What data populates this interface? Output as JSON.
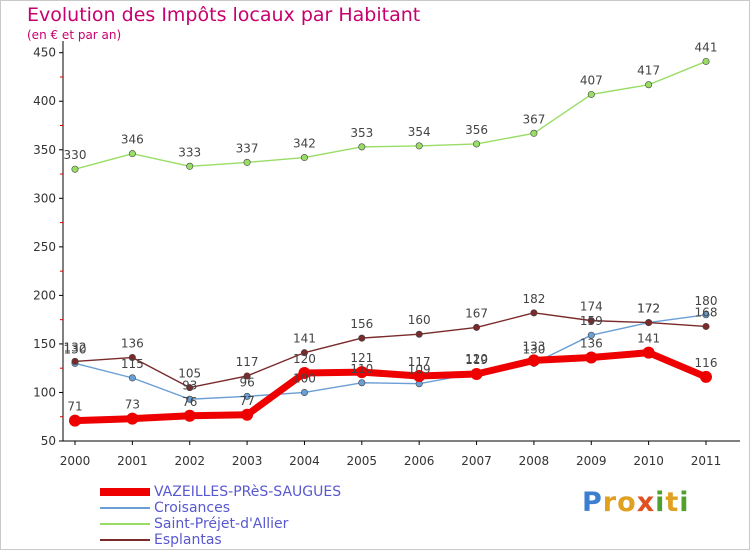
{
  "title": "Evolution des Impôts locaux par Habitant",
  "subtitle": "(en € et par an)",
  "brand": {
    "letters": [
      {
        "ch": "P",
        "color": "#3a7fd0"
      },
      {
        "ch": "r",
        "color": "#e0a020"
      },
      {
        "ch": "o",
        "color": "#e0a020"
      },
      {
        "ch": "x",
        "color": "#e05020"
      },
      {
        "ch": "i",
        "color": "#50a030"
      },
      {
        "ch": "t",
        "color": "#e0a020"
      },
      {
        "ch": "i",
        "color": "#50a030"
      }
    ]
  },
  "chart_data": {
    "type": "line",
    "x": [
      "2000",
      "2001",
      "2002",
      "2003",
      "2004",
      "2005",
      "2006",
      "2007",
      "2008",
      "2009",
      "2010",
      "2011"
    ],
    "ylim": [
      50,
      460
    ],
    "yticks": [
      50,
      100,
      150,
      200,
      250,
      300,
      350,
      400,
      450
    ],
    "grid": false,
    "legend_position": "bottom-left",
    "series": [
      {
        "name": "VAZEILLES-PRèS-SAUGUES",
        "color": "#ee0000",
        "values": [
          71,
          73,
          76,
          77,
          120,
          121,
          117,
          119,
          133,
          136,
          141,
          116
        ]
      },
      {
        "name": "Croisances",
        "color": "#6a9fd6",
        "values": [
          130,
          115,
          93,
          96,
          100,
          110,
          109,
          120,
          130,
          159,
          172,
          180
        ]
      },
      {
        "name": "Saint-Préjet-d'Allier",
        "color": "#99dd66",
        "values": [
          330,
          346,
          333,
          337,
          342,
          353,
          354,
          356,
          367,
          407,
          417,
          441
        ]
      },
      {
        "name": "Esplantas",
        "color": "#7a2a2a",
        "values": [
          132,
          136,
          105,
          117,
          141,
          156,
          160,
          167,
          182,
          174,
          172,
          168
        ]
      }
    ],
    "data_labels": [
      [
        "71",
        "73",
        "76",
        "77",
        "120",
        "121",
        "117",
        "119",
        "133",
        "136",
        "141",
        "116"
      ],
      [
        "130",
        "115",
        "93",
        "96",
        "100",
        "110",
        "109",
        "120",
        "130",
        "159",
        "172",
        "180"
      ],
      [
        "330",
        "346",
        "333",
        "337",
        "342",
        "353",
        "354",
        "356",
        "367",
        "407",
        "417",
        "441"
      ],
      [
        "132",
        "136",
        "105",
        "117",
        "141",
        "156",
        "160",
        "167",
        "182",
        "174",
        "172",
        "168"
      ]
    ]
  }
}
